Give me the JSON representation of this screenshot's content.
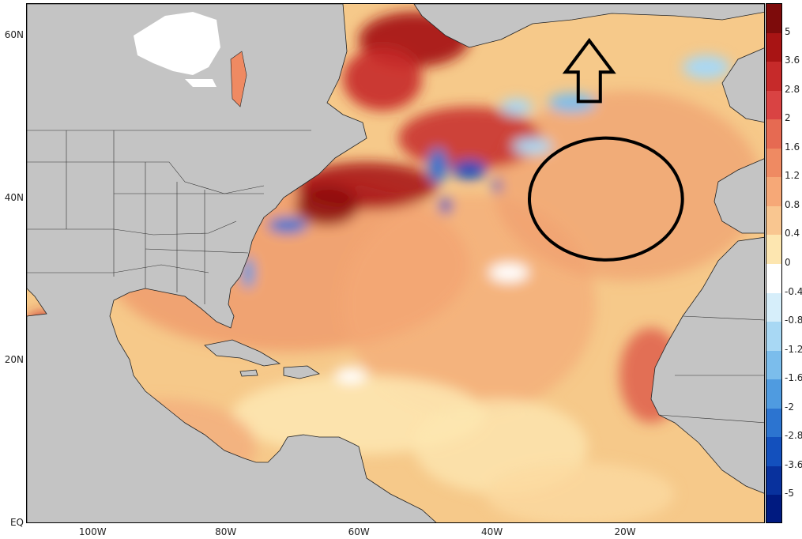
{
  "map": {
    "lat_labels": [
      {
        "value": 60,
        "label": "60N"
      },
      {
        "value": 40,
        "label": "40N"
      },
      {
        "value": 20,
        "label": "20N"
      },
      {
        "value": 0,
        "label": "EQ"
      }
    ],
    "lon_labels": [
      {
        "value": -100,
        "label": "100W"
      },
      {
        "value": -80,
        "label": "80W"
      },
      {
        "value": -60,
        "label": "60W"
      },
      {
        "value": -40,
        "label": "40W"
      },
      {
        "value": -20,
        "label": "20W"
      }
    ],
    "lon_range": [
      -110,
      1
    ],
    "lat_range": [
      0,
      64
    ],
    "colors": {
      "land": "#c4c4c4",
      "ice": "#ffffff",
      "ocean_base": "#f6c98a",
      "border": "#000000"
    },
    "annotations": [
      {
        "type": "ellipse",
        "center_lon": -23,
        "center_lat": 40,
        "lon_radius": 11.5,
        "lat_radius": 7.5,
        "icon": "ellipse-highlight-icon"
      },
      {
        "type": "arrow",
        "direction": "up",
        "lon": -25.5,
        "lat_from": 52,
        "lat_to": 59.5,
        "icon": "up-arrow-icon"
      }
    ]
  },
  "colorbar": {
    "labels": [
      "5",
      "3.6",
      "2.8",
      "2",
      "1.6",
      "1.2",
      "0.8",
      "0.4",
      "0",
      "-0.4",
      "-0.8",
      "-1.2",
      "-1.6",
      "-2",
      "-2.8",
      "-3.6",
      "-5"
    ],
    "colors": [
      "#7d0b0b",
      "#a81414",
      "#c62a2a",
      "#d94343",
      "#e66a52",
      "#ef8a62",
      "#f6a877",
      "#f9c690",
      "#fde6b0",
      "#ffffff",
      "#d6eefa",
      "#a8d8f4",
      "#7bbdec",
      "#4f9be0",
      "#2c74d0",
      "#1350bd",
      "#08319d",
      "#001a80"
    ]
  }
}
